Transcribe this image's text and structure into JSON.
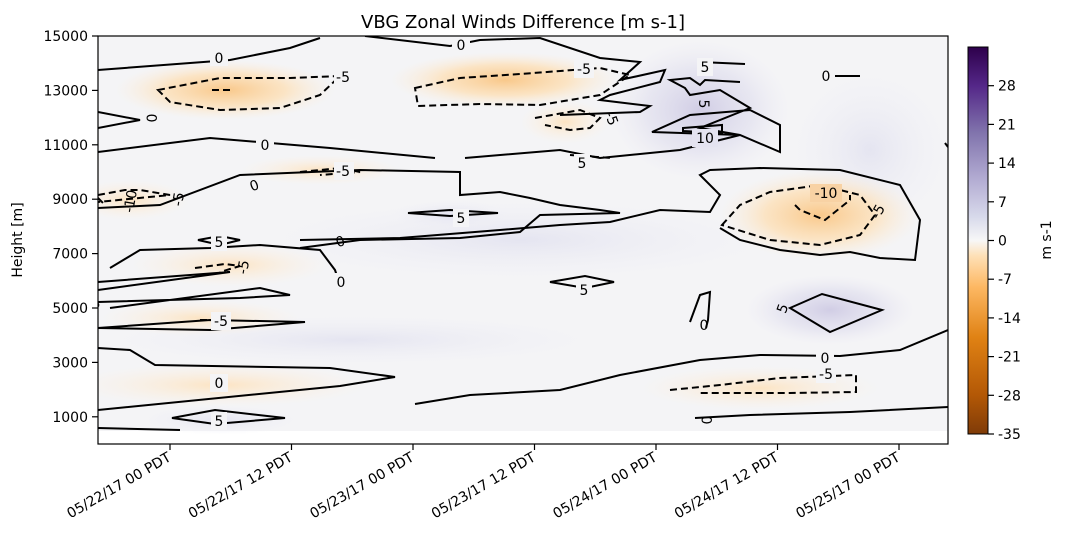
{
  "chart_data": {
    "type": "heatmap",
    "subtype": "filled-contour",
    "title": "VBG Zonal Winds Difference [m s-1]",
    "ylabel": "Height [m]",
    "xlabel": "",
    "colorbar_label": "m s-1",
    "colormap": "PuOr",
    "color_range": [
      -35,
      35
    ],
    "colors": {
      "negative_extreme": "#7f3b08",
      "negative_mid": "#f6a73b",
      "zero": "#f7f7f7",
      "positive_mid": "#b3abd2",
      "positive_extreme": "#2d004b"
    },
    "x_ticks": [
      "05/22/17 00 PDT",
      "05/22/17 12 PDT",
      "05/23/17 00 PDT",
      "05/23/17 12 PDT",
      "05/24/17 00 PDT",
      "05/24/17 12 PDT",
      "05/25/17 00 PDT"
    ],
    "y_ticks": [
      1000,
      3000,
      5000,
      7000,
      9000,
      11000,
      13000,
      15000
    ],
    "ylim": [
      0,
      15000
    ],
    "colorbar_ticks": [
      28,
      21,
      14,
      7,
      0,
      -7,
      -14,
      -21,
      -28,
      -35
    ],
    "contour_levels": [
      -10,
      -5,
      0,
      5,
      10
    ],
    "contour_labels": [
      {
        "text": "0",
        "x": "05/22/17 04 PDT",
        "y": 14200
      },
      {
        "text": "0",
        "x": "05/23/17 19 PDT",
        "y": 14800
      },
      {
        "text": "0",
        "x": "05/24/17 16 PDT",
        "y": 13500
      },
      {
        "text": "0",
        "x": "05/21/17 22 PDT",
        "y": 11900
      },
      {
        "text": "0",
        "x": "05/22/17 08 PDT",
        "y": 10800
      },
      {
        "text": "0",
        "x": "05/22/17 07 PDT",
        "y": 9500
      },
      {
        "text": "0",
        "x": "05/22/17 21 PDT",
        "y": 7400
      },
      {
        "text": "0",
        "x": "05/22/17 21 PDT",
        "y": 6000
      },
      {
        "text": "0",
        "x": "05/21/17 17 PDT",
        "y": 5000
      },
      {
        "text": "0",
        "x": "05/24/17 05 PDT",
        "y": 4300
      },
      {
        "text": "0",
        "x": "05/24/17 16 PDT",
        "y": 2200
      },
      {
        "text": "0",
        "x": "05/22/17 04 PDT",
        "y": 1200
      },
      {
        "text": "0",
        "x": "05/21/17 17 PDT",
        "y": 500
      },
      {
        "text": "0",
        "x": "05/24/17 05 PDT",
        "y": 800
      },
      {
        "text": "-5",
        "x": "05/22/17 21 PDT",
        "y": 13500
      },
      {
        "text": "-5",
        "x": "05/23/17 17 PDT",
        "y": 13800
      },
      {
        "text": "-5",
        "x": "05/23/17 19 PDT",
        "y": 11800
      },
      {
        "text": "-5",
        "x": "05/22/17 21 PDT",
        "y": 10000
      },
      {
        "text": "-5",
        "x": "05/21/17 23 PDT",
        "y": 8800
      },
      {
        "text": "-5",
        "x": "05/22/17 06 PDT",
        "y": 6300
      },
      {
        "text": "-5",
        "x": "05/22/17 04 PDT",
        "y": 4600
      },
      {
        "text": "-5",
        "x": "05/24/17 20 PDT",
        "y": 8600
      },
      {
        "text": "-5",
        "x": "05/24/17 16 PDT",
        "y": 1600
      },
      {
        "text": "5",
        "x": "05/24/17 12 PDT",
        "y": 13900
      },
      {
        "text": "5",
        "x": "05/24/17 04 PDT",
        "y": 12300
      },
      {
        "text": "5",
        "x": "05/23/17 16 PDT",
        "y": 10400
      },
      {
        "text": "5",
        "x": "05/23/17 05 PDT",
        "y": 8400
      },
      {
        "text": "5",
        "x": "05/22/17 04 PDT",
        "y": 7500
      },
      {
        "text": "5",
        "x": "05/23/17 16 PDT",
        "y": 5700
      },
      {
        "text": "5",
        "x": "05/24/17 12 PDT",
        "y": 4900
      },
      {
        "text": "5",
        "x": "05/22/17 04 PDT",
        "y": 800
      },
      {
        "text": "10",
        "x": "05/24/17 04 PDT",
        "y": 11300
      },
      {
        "text": "-10",
        "x": "05/24/17 16 PDT",
        "y": 9300
      },
      {
        "text": "-10",
        "x": "05/21/17 21 PDT",
        "y": 9000
      }
    ]
  }
}
